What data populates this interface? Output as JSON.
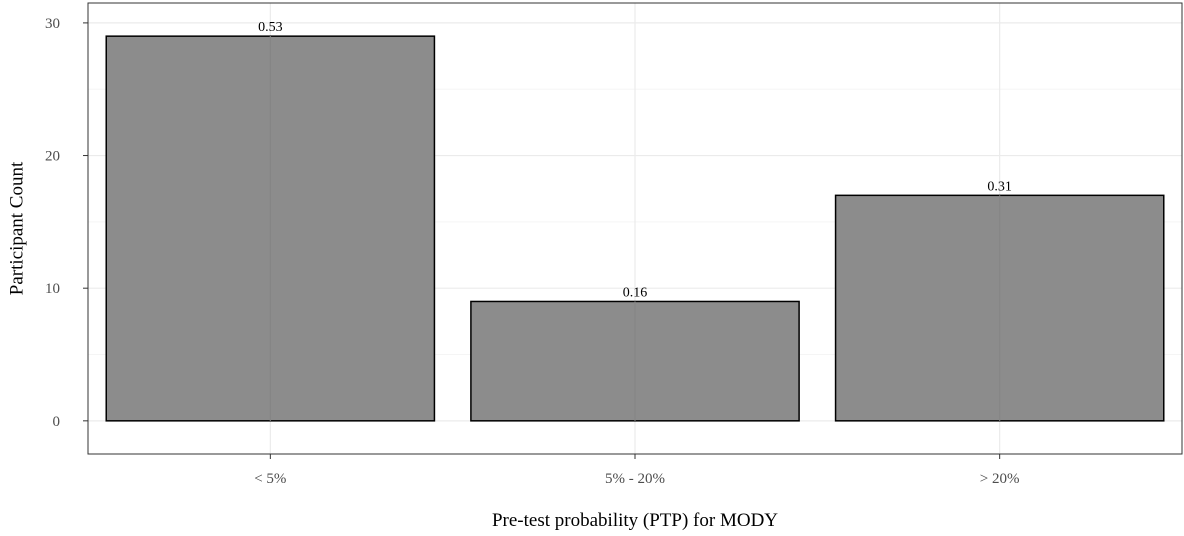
{
  "chart_data": {
    "type": "bar",
    "categories": [
      "< 5%",
      "5% - 20%",
      "> 20%"
    ],
    "values": [
      29,
      9,
      17
    ],
    "bar_labels": [
      "0.53",
      "0.16",
      "0.31"
    ],
    "xlabel": "Pre-test probability (PTP) for MODY",
    "ylabel": "Participant Count",
    "yticks": [
      0,
      10,
      20,
      30
    ],
    "ylim": [
      -2.5,
      31.5
    ],
    "grid": true,
    "legend": "none",
    "colors": {
      "bar_fill": "#8c8c8c",
      "bar_stroke": "#000000",
      "grid_major": "#ebebeb",
      "grid_minor": "#f5f5f5",
      "panel_border": "#333333"
    }
  }
}
